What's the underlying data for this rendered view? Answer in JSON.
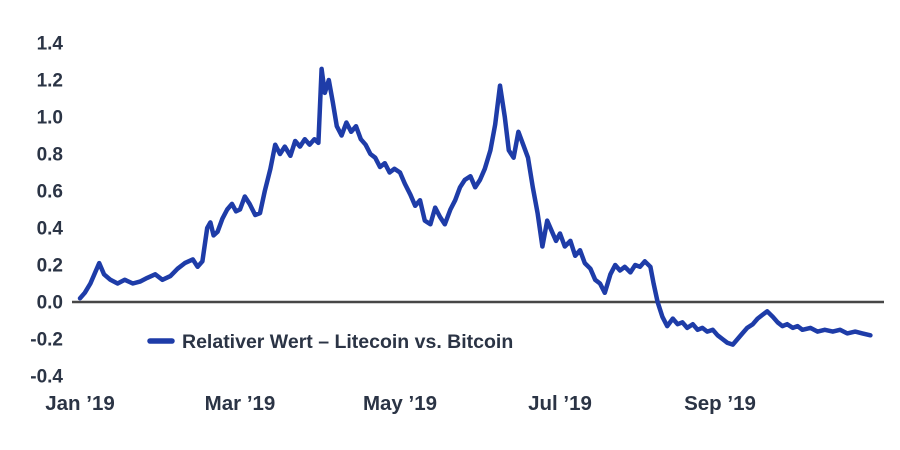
{
  "colors": {
    "line": "#1e3ca8",
    "zero_line": "#474747",
    "text": "#2b3445",
    "background": "#ffffff"
  },
  "legend": {
    "label": "Relativer Wert – Litecoin vs. Bitcoin"
  },
  "chart_data": {
    "type": "line",
    "title": "",
    "xlabel": "",
    "ylabel": "",
    "grid": false,
    "legend_position": "inside-bottom-left",
    "x_unit": "months since Jan 1 2019",
    "xlim": [
      0,
      10
    ],
    "ylim": [
      -0.4,
      1.4
    ],
    "y_ticks": [
      1.4,
      1.2,
      1.0,
      0.8,
      0.6,
      0.4,
      0.2,
      0.0,
      -0.2,
      -0.4
    ],
    "x_tick_labels": [
      "Jan ’19",
      "Mar ’19",
      "May ’19",
      "Jul ’19",
      "Sep ’19"
    ],
    "x_tick_positions": [
      0,
      2,
      4,
      6,
      8
    ],
    "series": [
      {
        "name": "Relativer Wert – Litecoin vs. Bitcoin",
        "points": [
          [
            0.0,
            0.02
          ],
          [
            0.06,
            0.05
          ],
          [
            0.13,
            0.1
          ],
          [
            0.19,
            0.16
          ],
          [
            0.24,
            0.21
          ],
          [
            0.3,
            0.15
          ],
          [
            0.38,
            0.12
          ],
          [
            0.47,
            0.1
          ],
          [
            0.56,
            0.12
          ],
          [
            0.66,
            0.1
          ],
          [
            0.75,
            0.11
          ],
          [
            0.84,
            0.13
          ],
          [
            0.94,
            0.15
          ],
          [
            1.03,
            0.12
          ],
          [
            1.13,
            0.14
          ],
          [
            1.22,
            0.18
          ],
          [
            1.31,
            0.21
          ],
          [
            1.41,
            0.23
          ],
          [
            1.47,
            0.19
          ],
          [
            1.53,
            0.22
          ],
          [
            1.59,
            0.4
          ],
          [
            1.63,
            0.43
          ],
          [
            1.67,
            0.36
          ],
          [
            1.72,
            0.38
          ],
          [
            1.78,
            0.45
          ],
          [
            1.84,
            0.5
          ],
          [
            1.9,
            0.53
          ],
          [
            1.95,
            0.49
          ],
          [
            2.0,
            0.5
          ],
          [
            2.06,
            0.57
          ],
          [
            2.12,
            0.53
          ],
          [
            2.19,
            0.47
          ],
          [
            2.25,
            0.48
          ],
          [
            2.31,
            0.6
          ],
          [
            2.38,
            0.72
          ],
          [
            2.44,
            0.85
          ],
          [
            2.5,
            0.8
          ],
          [
            2.56,
            0.84
          ],
          [
            2.63,
            0.79
          ],
          [
            2.69,
            0.87
          ],
          [
            2.75,
            0.84
          ],
          [
            2.81,
            0.88
          ],
          [
            2.87,
            0.85
          ],
          [
            2.93,
            0.88
          ],
          [
            2.98,
            0.86
          ],
          [
            3.02,
            1.26
          ],
          [
            3.06,
            1.13
          ],
          [
            3.11,
            1.2
          ],
          [
            3.16,
            1.08
          ],
          [
            3.21,
            0.95
          ],
          [
            3.27,
            0.9
          ],
          [
            3.33,
            0.97
          ],
          [
            3.39,
            0.92
          ],
          [
            3.45,
            0.95
          ],
          [
            3.51,
            0.88
          ],
          [
            3.57,
            0.85
          ],
          [
            3.63,
            0.8
          ],
          [
            3.69,
            0.78
          ],
          [
            3.75,
            0.73
          ],
          [
            3.81,
            0.75
          ],
          [
            3.87,
            0.7
          ],
          [
            3.93,
            0.72
          ],
          [
            4.0,
            0.7
          ],
          [
            4.06,
            0.64
          ],
          [
            4.13,
            0.58
          ],
          [
            4.19,
            0.52
          ],
          [
            4.25,
            0.55
          ],
          [
            4.31,
            0.44
          ],
          [
            4.38,
            0.42
          ],
          [
            4.44,
            0.51
          ],
          [
            4.5,
            0.46
          ],
          [
            4.56,
            0.42
          ],
          [
            4.63,
            0.5
          ],
          [
            4.69,
            0.55
          ],
          [
            4.75,
            0.62
          ],
          [
            4.81,
            0.66
          ],
          [
            4.88,
            0.68
          ],
          [
            4.94,
            0.62
          ],
          [
            5.0,
            0.66
          ],
          [
            5.06,
            0.72
          ],
          [
            5.13,
            0.82
          ],
          [
            5.19,
            0.96
          ],
          [
            5.25,
            1.17
          ],
          [
            5.31,
            1.0
          ],
          [
            5.36,
            0.82
          ],
          [
            5.42,
            0.78
          ],
          [
            5.48,
            0.92
          ],
          [
            5.54,
            0.85
          ],
          [
            5.6,
            0.78
          ],
          [
            5.66,
            0.62
          ],
          [
            5.72,
            0.48
          ],
          [
            5.78,
            0.3
          ],
          [
            5.84,
            0.44
          ],
          [
            5.9,
            0.38
          ],
          [
            5.95,
            0.33
          ],
          [
            6.0,
            0.37
          ],
          [
            6.06,
            0.3
          ],
          [
            6.13,
            0.33
          ],
          [
            6.19,
            0.25
          ],
          [
            6.25,
            0.28
          ],
          [
            6.31,
            0.21
          ],
          [
            6.38,
            0.18
          ],
          [
            6.44,
            0.12
          ],
          [
            6.5,
            0.1
          ],
          [
            6.56,
            0.05
          ],
          [
            6.63,
            0.15
          ],
          [
            6.69,
            0.2
          ],
          [
            6.75,
            0.17
          ],
          [
            6.81,
            0.19
          ],
          [
            6.88,
            0.16
          ],
          [
            6.94,
            0.2
          ],
          [
            7.0,
            0.19
          ],
          [
            7.06,
            0.22
          ],
          [
            7.13,
            0.19
          ],
          [
            7.17,
            0.1
          ],
          [
            7.22,
            0.0
          ],
          [
            7.28,
            -0.08
          ],
          [
            7.34,
            -0.13
          ],
          [
            7.41,
            -0.09
          ],
          [
            7.47,
            -0.12
          ],
          [
            7.53,
            -0.11
          ],
          [
            7.59,
            -0.14
          ],
          [
            7.66,
            -0.12
          ],
          [
            7.72,
            -0.15
          ],
          [
            7.78,
            -0.14
          ],
          [
            7.84,
            -0.16
          ],
          [
            7.91,
            -0.15
          ],
          [
            7.97,
            -0.18
          ],
          [
            8.03,
            -0.2
          ],
          [
            8.09,
            -0.22
          ],
          [
            8.16,
            -0.23
          ],
          [
            8.22,
            -0.2
          ],
          [
            8.28,
            -0.17
          ],
          [
            8.34,
            -0.14
          ],
          [
            8.41,
            -0.12
          ],
          [
            8.47,
            -0.09
          ],
          [
            8.53,
            -0.07
          ],
          [
            8.59,
            -0.05
          ],
          [
            8.66,
            -0.08
          ],
          [
            8.72,
            -0.11
          ],
          [
            8.78,
            -0.13
          ],
          [
            8.84,
            -0.12
          ],
          [
            8.91,
            -0.14
          ],
          [
            8.97,
            -0.13
          ],
          [
            9.03,
            -0.15
          ],
          [
            9.13,
            -0.14
          ],
          [
            9.22,
            -0.16
          ],
          [
            9.31,
            -0.15
          ],
          [
            9.41,
            -0.16
          ],
          [
            9.5,
            -0.15
          ],
          [
            9.59,
            -0.17
          ],
          [
            9.69,
            -0.16
          ],
          [
            9.78,
            -0.17
          ],
          [
            9.88,
            -0.18
          ]
        ]
      }
    ]
  }
}
